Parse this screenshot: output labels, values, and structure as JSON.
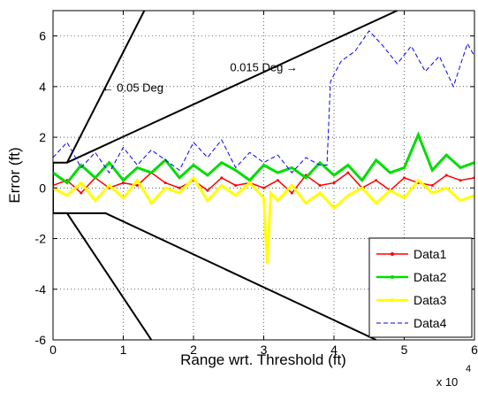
{
  "chart_data": {
    "type": "line",
    "title": "",
    "xlabel": "Range wrt. Threshold (ft)",
    "ylabel": "Error (ft)",
    "x_exponent_label": "x 10",
    "x_exponent_power": "4",
    "xlim": [
      0,
      6
    ],
    "ylim": [
      -6,
      7
    ],
    "xticks": [
      0,
      1,
      2,
      3,
      4,
      5,
      6
    ],
    "yticks": [
      -6,
      -4,
      -2,
      0,
      2,
      4,
      6
    ],
    "grid": true,
    "legend_position": "bottom-right",
    "boundary_lines": [
      {
        "points": [
          [
            0,
            1
          ],
          [
            0.2,
            1
          ],
          [
            1.3,
            7
          ]
        ]
      },
      {
        "points": [
          [
            0.2,
            1
          ],
          [
            4.9,
            7
          ]
        ]
      },
      {
        "points": [
          [
            0,
            1
          ],
          [
            0,
            -1
          ]
        ]
      },
      {
        "points": [
          [
            0,
            -1
          ],
          [
            0.2,
            -1
          ],
          [
            1.4,
            -6
          ]
        ]
      },
      {
        "points": [
          [
            0,
            -1
          ],
          [
            0.75,
            -1
          ],
          [
            4.6,
            -6
          ]
        ]
      }
    ],
    "annotations": [
      {
        "text": "0.015 Deg →",
        "x": 2.52,
        "y": 4.6
      },
      {
        "text": "← 0.05 Deg",
        "x": 0.7,
        "y": 3.8
      }
    ],
    "series": [
      {
        "name": "Data1",
        "color": "#ff0000",
        "style": "solid-dots",
        "x": [
          0.0,
          0.2,
          0.4,
          0.6,
          0.8,
          1.0,
          1.2,
          1.4,
          1.6,
          1.8,
          2.0,
          2.2,
          2.4,
          2.6,
          2.8,
          3.0,
          3.2,
          3.4,
          3.6,
          3.8,
          4.0,
          4.2,
          4.4,
          4.6,
          4.8,
          5.0,
          5.2,
          5.4,
          5.6,
          5.8,
          6.0
        ],
        "y": [
          0.1,
          0.3,
          -0.2,
          0.4,
          0.0,
          0.2,
          0.1,
          0.6,
          0.2,
          0.0,
          0.3,
          -0.1,
          0.4,
          0.1,
          0.2,
          0.0,
          0.3,
          -0.2,
          0.5,
          0.1,
          0.2,
          0.6,
          0.0,
          0.3,
          -0.1,
          0.4,
          0.2,
          0.1,
          0.5,
          0.3,
          0.4
        ]
      },
      {
        "name": "Data2",
        "color": "#00dd00",
        "style": "solid-thick",
        "x": [
          0.0,
          0.2,
          0.4,
          0.6,
          0.8,
          1.0,
          1.2,
          1.4,
          1.6,
          1.8,
          2.0,
          2.2,
          2.4,
          2.6,
          2.8,
          3.0,
          3.2,
          3.4,
          3.6,
          3.8,
          4.0,
          4.2,
          4.4,
          4.6,
          4.8,
          5.0,
          5.2,
          5.4,
          5.6,
          5.8,
          6.0
        ],
        "y": [
          0.6,
          0.2,
          0.9,
          0.4,
          1.0,
          0.3,
          0.8,
          0.6,
          1.1,
          0.4,
          0.9,
          0.5,
          1.0,
          0.7,
          0.3,
          0.9,
          0.6,
          0.8,
          0.4,
          1.0,
          0.5,
          0.9,
          0.3,
          1.1,
          0.6,
          0.8,
          2.1,
          0.7,
          1.3,
          0.8,
          1.0
        ]
      },
      {
        "name": "Data3",
        "color": "#ffff00",
        "style": "solid-thick",
        "x": [
          0.0,
          0.2,
          0.4,
          0.6,
          0.8,
          1.0,
          1.2,
          1.4,
          1.6,
          1.8,
          2.0,
          2.2,
          2.4,
          2.6,
          2.8,
          3.0,
          3.05,
          3.1,
          3.2,
          3.4,
          3.6,
          3.8,
          4.0,
          4.2,
          4.4,
          4.6,
          4.8,
          5.0,
          5.2,
          5.4,
          5.6,
          5.8,
          6.0
        ],
        "y": [
          0.0,
          -0.3,
          0.2,
          -0.5,
          0.1,
          -0.4,
          0.3,
          -0.6,
          0.0,
          -0.2,
          0.4,
          -0.5,
          0.1,
          -0.3,
          0.2,
          -0.4,
          -3.0,
          -0.2,
          -0.5,
          0.1,
          -0.6,
          -0.2,
          -0.8,
          -0.3,
          0.0,
          -0.6,
          -0.1,
          -0.4,
          0.3,
          -0.2,
          0.0,
          -0.5,
          -0.3
        ]
      },
      {
        "name": "Data4",
        "color": "#0000ff",
        "style": "dashed",
        "x": [
          0.0,
          0.2,
          0.4,
          0.6,
          0.8,
          1.0,
          1.2,
          1.4,
          1.6,
          1.8,
          2.0,
          2.2,
          2.4,
          2.6,
          2.8,
          3.0,
          3.2,
          3.4,
          3.6,
          3.8,
          3.9,
          3.95,
          4.1,
          4.3,
          4.5,
          4.7,
          4.9,
          5.1,
          5.3,
          5.5,
          5.7,
          5.9,
          6.0
        ],
        "y": [
          1.2,
          1.8,
          0.8,
          1.4,
          0.6,
          1.6,
          0.9,
          1.5,
          1.1,
          0.7,
          1.8,
          1.2,
          1.9,
          0.8,
          1.4,
          1.0,
          1.3,
          0.6,
          1.2,
          0.9,
          0.9,
          4.2,
          5.0,
          5.4,
          6.2,
          5.6,
          4.9,
          5.6,
          4.6,
          5.2,
          4.0,
          5.7,
          5.2
        ]
      }
    ]
  }
}
